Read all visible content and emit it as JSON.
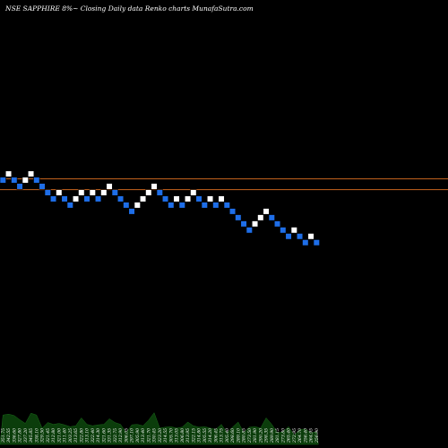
{
  "header": {
    "text": "NSE SAPPHIRE 8%~   Closing Daily data  Renko  charts MunafaSutra.com"
  },
  "colors": {
    "background": "#000000",
    "up_brick": "#ffffff",
    "down_brick": "#1e6ee8",
    "reference_line": "#c8641e",
    "volume_area": "#0b3d0b"
  },
  "chart_data": {
    "type": "renko",
    "reference_lines": [
      {
        "label": "",
        "y": 340.6
      },
      {
        "label": "",
        "y": 326.4
      }
    ],
    "bricks": [
      {
        "dir": "down",
        "y": 338.9
      },
      {
        "dir": "up",
        "y": 347.1
      },
      {
        "dir": "down",
        "y": 338.9
      },
      {
        "dir": "down",
        "y": 330.7
      },
      {
        "dir": "up",
        "y": 338.9
      },
      {
        "dir": "up",
        "y": 347.1
      },
      {
        "dir": "down",
        "y": 338.9
      },
      {
        "dir": "down",
        "y": 330.7
      },
      {
        "dir": "down",
        "y": 322.5
      },
      {
        "dir": "down",
        "y": 314.3
      },
      {
        "dir": "up",
        "y": 322.5
      },
      {
        "dir": "down",
        "y": 314.3
      },
      {
        "dir": "down",
        "y": 306.1
      },
      {
        "dir": "up",
        "y": 314.3
      },
      {
        "dir": "up",
        "y": 322.5
      },
      {
        "dir": "down",
        "y": 314.3
      },
      {
        "dir": "up",
        "y": 322.5
      },
      {
        "dir": "down",
        "y": 314.3
      },
      {
        "dir": "up",
        "y": 322.5
      },
      {
        "dir": "up",
        "y": 330.7
      },
      {
        "dir": "down",
        "y": 322.5
      },
      {
        "dir": "down",
        "y": 314.3
      },
      {
        "dir": "down",
        "y": 306.1
      },
      {
        "dir": "down",
        "y": 297.9
      },
      {
        "dir": "up",
        "y": 306.1
      },
      {
        "dir": "up",
        "y": 314.3
      },
      {
        "dir": "up",
        "y": 322.5
      },
      {
        "dir": "up",
        "y": 330.7
      },
      {
        "dir": "down",
        "y": 322.5
      },
      {
        "dir": "down",
        "y": 314.3
      },
      {
        "dir": "down",
        "y": 306.1
      },
      {
        "dir": "up",
        "y": 314.3
      },
      {
        "dir": "down",
        "y": 306.1
      },
      {
        "dir": "up",
        "y": 314.3
      },
      {
        "dir": "up",
        "y": 322.5
      },
      {
        "dir": "down",
        "y": 314.3
      },
      {
        "dir": "down",
        "y": 306.1
      },
      {
        "dir": "up",
        "y": 314.3
      },
      {
        "dir": "down",
        "y": 306.1
      },
      {
        "dir": "up",
        "y": 314.3
      },
      {
        "dir": "down",
        "y": 306.1
      },
      {
        "dir": "down",
        "y": 297.9
      },
      {
        "dir": "down",
        "y": 289.7
      },
      {
        "dir": "down",
        "y": 281.5
      },
      {
        "dir": "down",
        "y": 273.3
      },
      {
        "dir": "up",
        "y": 281.5
      },
      {
        "dir": "up",
        "y": 289.7
      },
      {
        "dir": "up",
        "y": 297.9
      },
      {
        "dir": "down",
        "y": 289.7
      },
      {
        "dir": "down",
        "y": 281.5
      },
      {
        "dir": "down",
        "y": 273.3
      },
      {
        "dir": "down",
        "y": 265.1
      },
      {
        "dir": "up",
        "y": 273.3
      },
      {
        "dir": "down",
        "y": 265.1
      },
      {
        "dir": "down",
        "y": 256.9
      },
      {
        "dir": "up",
        "y": 265.1
      },
      {
        "dir": "down",
        "y": 256.9
      }
    ],
    "volume": [
      {
        "label": "351.75",
        "v": 0.55
      },
      {
        "label": "342.55",
        "v": 0.7
      },
      {
        "label": "336.60",
        "v": 0.6
      },
      {
        "label": "327.80",
        "v": 0.45
      },
      {
        "label": "337.20",
        "v": 0.5
      },
      {
        "label": "345.85",
        "v": 0.65
      },
      {
        "label": "338.10",
        "v": 0.55
      },
      {
        "label": "329.50",
        "v": 0.4
      },
      {
        "label": "321.45",
        "v": 0.45
      },
      {
        "label": "312.80",
        "v": 0.35
      },
      {
        "label": "321.00",
        "v": 0.5
      },
      {
        "label": "311.40",
        "v": 0.4
      },
      {
        "label": "303.25",
        "v": 0.3
      },
      {
        "label": "313.65",
        "v": 0.45
      },
      {
        "label": "322.80",
        "v": 0.55
      },
      {
        "label": "313.10",
        "v": 0.35
      },
      {
        "label": "322.40",
        "v": 0.45
      },
      {
        "label": "314.30",
        "v": 0.4
      },
      {
        "label": "321.60",
        "v": 0.35
      },
      {
        "label": "331.35",
        "v": 0.6
      },
      {
        "label": "322.75",
        "v": 0.45
      },
      {
        "label": "312.90",
        "v": 0.35
      },
      {
        "label": "306.05",
        "v": 0.3
      },
      {
        "label": "297.10",
        "v": 0.4
      },
      {
        "label": "305.90",
        "v": 0.35
      },
      {
        "label": "313.40",
        "v": 0.45
      },
      {
        "label": "321.70",
        "v": 0.5
      },
      {
        "label": "330.45",
        "v": 0.6
      },
      {
        "label": "323.20",
        "v": 0.4
      },
      {
        "label": "314.55",
        "v": 0.35
      },
      {
        "label": "305.70",
        "v": 0.3
      },
      {
        "label": "313.05",
        "v": 0.4
      },
      {
        "label": "306.80",
        "v": 0.35
      },
      {
        "label": "313.95",
        "v": 0.4
      },
      {
        "label": "322.15",
        "v": 0.45
      },
      {
        "label": "314.80",
        "v": 0.35
      },
      {
        "label": "305.55",
        "v": 0.3
      },
      {
        "label": "314.20",
        "v": 0.4
      },
      {
        "label": "306.45",
        "v": 0.3
      },
      {
        "label": "313.75",
        "v": 0.35
      },
      {
        "label": "305.40",
        "v": 0.3
      },
      {
        "label": "298.60",
        "v": 0.35
      },
      {
        "label": "289.10",
        "v": 0.4
      },
      {
        "label": "280.85",
        "v": 0.3
      },
      {
        "label": "273.50",
        "v": 0.35
      },
      {
        "label": "281.90",
        "v": 0.3
      },
      {
        "label": "290.20",
        "v": 0.4
      },
      {
        "label": "298.35",
        "v": 0.55
      },
      {
        "label": "289.90",
        "v": 0.35
      },
      {
        "label": "281.15",
        "v": 0.3
      },
      {
        "label": "273.80",
        "v": 0.25
      },
      {
        "label": "265.40",
        "v": 0.3
      },
      {
        "label": "272.95",
        "v": 0.25
      },
      {
        "label": "264.70",
        "v": 0.3
      },
      {
        "label": "256.40",
        "v": 0.25
      },
      {
        "label": "264.95",
        "v": 0.3
      },
      {
        "label": "256.90",
        "v": 0.25
      }
    ]
  }
}
